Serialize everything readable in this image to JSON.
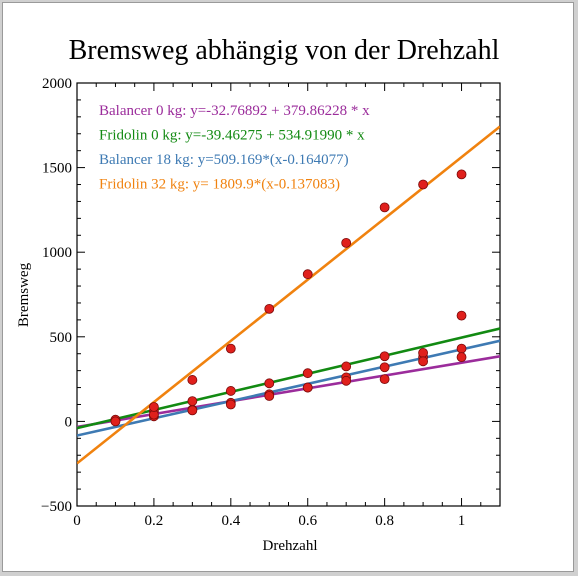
{
  "chart_data": {
    "type": "scatter",
    "title": "Bremsweg abhängig von der Drehzahl",
    "xlabel": "Drehzahl",
    "ylabel": "Bremsweg",
    "xlim": [
      0,
      1.1
    ],
    "ylim": [
      -500,
      2000
    ],
    "x_ticks": [
      0,
      0.2,
      0.4,
      0.6,
      0.8,
      1
    ],
    "x_tick_labels": [
      "0",
      "0.2",
      "0.4",
      "0.6",
      "0.8",
      "1"
    ],
    "y_ticks": [
      -500,
      0,
      500,
      1000,
      1500,
      2000
    ],
    "y_tick_labels": [
      "−500",
      "0",
      "500",
      "1000",
      "1500",
      "2000"
    ],
    "grid": false,
    "legend_position": "top-left",
    "points_color": "#e0201c",
    "series": [
      {
        "name": "Balancer 0 kg: y=-32.76892 + 379.86228 * x",
        "color": "#9b2c9b",
        "fit": {
          "intercept": -32.76892,
          "slope": 379.86228
        },
        "x": [
          0.1,
          0.2,
          0.3,
          0.4,
          0.5,
          0.6,
          0.7,
          0.8,
          0.9,
          1.0
        ],
        "y": [
          5,
          30,
          70,
          110,
          160,
          200,
          260,
          320,
          380,
          430
        ]
      },
      {
        "name": "Fridolin 0 kg: y=-39.46275 + 534.91990 * x",
        "color": "#128a12",
        "fit": {
          "intercept": -39.46275,
          "slope": 534.9199
        },
        "x": [
          0.1,
          0.2,
          0.3,
          0.4,
          0.5,
          0.6,
          0.7,
          0.8,
          0.9,
          1.0
        ],
        "y": [
          10,
          60,
          120,
          180,
          225,
          285,
          325,
          385,
          405,
          625
        ]
      },
      {
        "name": "Balancer 18 kg: y=509.169*(x-0.164077)",
        "color": "#3e7ab3",
        "fit": {
          "x0": 0.164077,
          "slope": 509.169
        },
        "x": [
          0.1,
          0.2,
          0.3,
          0.4,
          0.5,
          0.6,
          0.7,
          0.8,
          0.9,
          1.0
        ],
        "y": [
          0,
          40,
          65,
          100,
          150,
          200,
          240,
          250,
          355,
          380
        ]
      },
      {
        "name": "Fridolin 32 kg: y= 1809.9*(x-0.137083)",
        "color": "#f0820f",
        "fit": {
          "x0": 0.137083,
          "slope": 1809.9
        },
        "x": [
          0.2,
          0.3,
          0.4,
          0.5,
          0.6,
          0.7,
          0.8,
          0.9,
          1.0
        ],
        "y": [
          85,
          245,
          430,
          665,
          870,
          1055,
          1265,
          1400,
          1460
        ]
      }
    ]
  }
}
